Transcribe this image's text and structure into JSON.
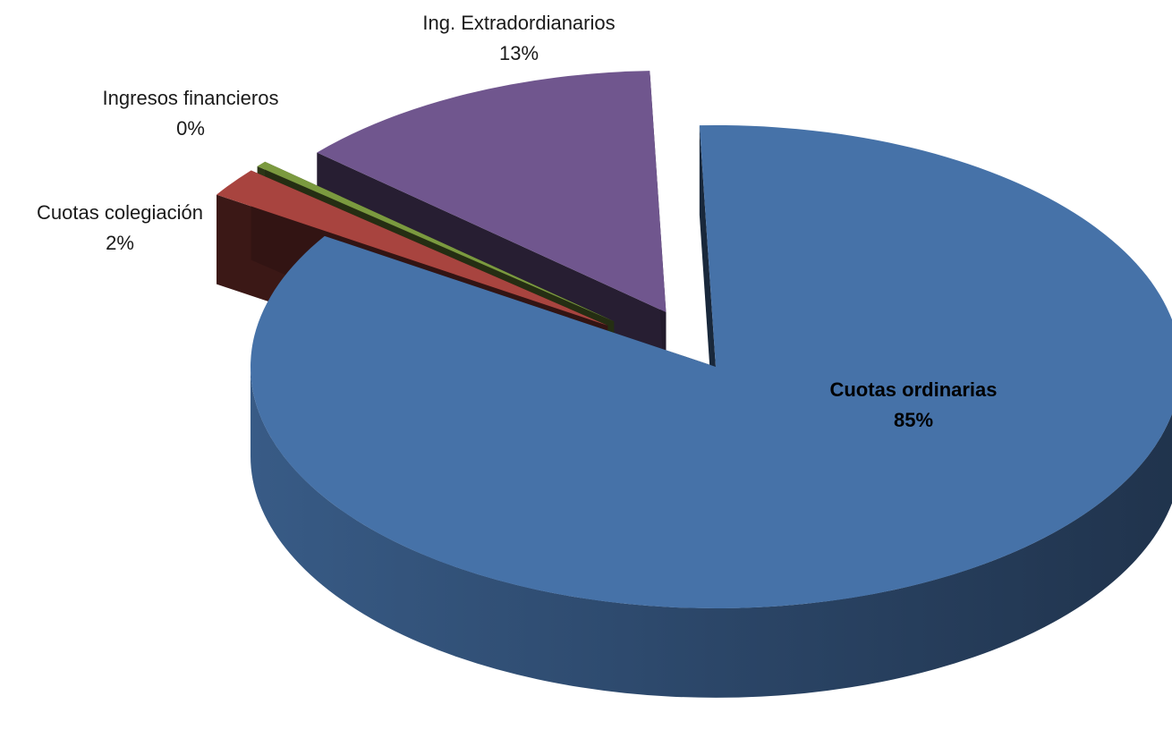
{
  "chart_data": {
    "type": "pie",
    "style": "3d-exploded",
    "slices": [
      {
        "label": "Cuotas ordinarias",
        "value_label": "85%",
        "value": 85,
        "color": "#4672A8",
        "label_bold": true
      },
      {
        "label": "Cuotas colegiación",
        "value_label": "2%",
        "value": 2,
        "color": "#A8443F",
        "label_bold": false
      },
      {
        "label": "Ingresos financieros",
        "value_label": "0%",
        "value": 0.4,
        "color": "#7B9A3F",
        "label_bold": false
      },
      {
        "label": "Ing. Extradordianarios",
        "value_label": "13%",
        "value": 13,
        "color": "#70568E",
        "label_bold": false
      }
    ],
    "legend": "none",
    "data_labels": "outside"
  }
}
